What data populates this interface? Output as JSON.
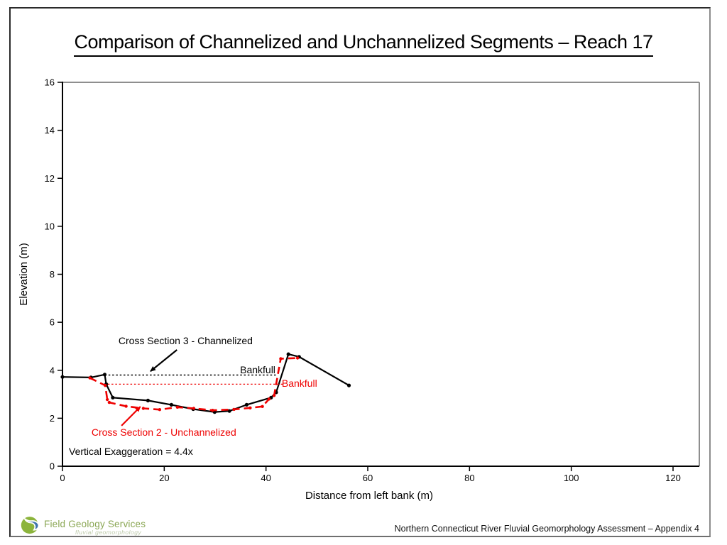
{
  "slide": {
    "title": "Comparison of Channelized and Unchannelized Segments – Reach 17",
    "footer": "Northern Connecticut River Fluvial Geomorphology Assessment – Appendix 4",
    "logo": {
      "name": "Field Geology Services",
      "tagline": "fluvial geomorphology",
      "icon": "swirl-leaf-logo",
      "colors": {
        "green": "#8cb43c",
        "blue": "#3f74ad",
        "name_text": "#8aa653",
        "tagline_text": "#bdc9a9"
      }
    }
  },
  "chart_data": {
    "type": "line",
    "title": "",
    "xlabel": "Distance from left bank (m)",
    "ylabel": "Elevation (m)",
    "xlim": [
      0,
      125
    ],
    "ylim": [
      0,
      16
    ],
    "x_ticks": [
      0,
      20,
      40,
      60,
      80,
      100,
      120
    ],
    "y_ticks": [
      0,
      2,
      4,
      6,
      8,
      10,
      12,
      14,
      16
    ],
    "grid": false,
    "legend_position": "none",
    "axis_color": "#000000",
    "plot_border_color": "#8e8e8e",
    "series": [
      {
        "id": "channelized",
        "name": "Cross Section 3 - Channelized",
        "color": "#000000",
        "style": "solid",
        "width": 2.2,
        "markers": true,
        "marker_r": 2.6,
        "points": [
          [
            0,
            3.72
          ],
          [
            5.6,
            3.7
          ],
          [
            8.3,
            3.82
          ],
          [
            8.6,
            3.42
          ],
          [
            9.9,
            2.86
          ],
          [
            16.8,
            2.74
          ],
          [
            21.4,
            2.56
          ],
          [
            25.7,
            2.38
          ],
          [
            29.9,
            2.26
          ],
          [
            32.8,
            2.3
          ],
          [
            36.2,
            2.56
          ],
          [
            41.0,
            2.86
          ],
          [
            42.0,
            3.08
          ],
          [
            44.4,
            4.67
          ],
          [
            46.5,
            4.56
          ],
          [
            56.3,
            3.37
          ]
        ]
      },
      {
        "id": "unchannelized",
        "name": "Cross Section 2 - Unchannelized",
        "color": "#ee0000",
        "style": "dashed",
        "width": 2.6,
        "markers": true,
        "marker_r": 2.2,
        "points": [
          [
            5.4,
            3.68
          ],
          [
            8.4,
            3.37
          ],
          [
            8.8,
            2.78
          ],
          [
            9.2,
            2.66
          ],
          [
            12.5,
            2.5
          ],
          [
            15.9,
            2.41
          ],
          [
            19.1,
            2.36
          ],
          [
            22.6,
            2.46
          ],
          [
            25.8,
            2.41
          ],
          [
            29.5,
            2.33
          ],
          [
            33.7,
            2.37
          ],
          [
            36.9,
            2.43
          ],
          [
            39.3,
            2.49
          ],
          [
            40.6,
            2.8
          ],
          [
            41.6,
            2.95
          ],
          [
            42.9,
            4.48
          ],
          [
            46.2,
            4.51
          ]
        ]
      },
      {
        "id": "bankfull-channelized",
        "name": "Bankfull",
        "color": "#000000",
        "style": "dotted",
        "width": 1.6,
        "markers": false,
        "points": [
          [
            8.3,
            3.8
          ],
          [
            42.0,
            3.8
          ]
        ]
      },
      {
        "id": "bankfull-unchannelized",
        "name": "Bankfull",
        "color": "#ee0000",
        "style": "dotted",
        "width": 1.3,
        "markers": false,
        "points": [
          [
            8.9,
            3.42
          ],
          [
            43.6,
            3.42
          ]
        ]
      }
    ],
    "annotations": [
      {
        "id": "label-channelized",
        "text": "Cross Section 3 - Channelized",
        "color": "#000000",
        "x": 11.0,
        "y": 5.09,
        "arrow": {
          "x1": 22.5,
          "y1": 4.85,
          "x2": 17.3,
          "y2": 3.96
        }
      },
      {
        "id": "label-bankfull-black",
        "text": "Bankfull",
        "color": "#000000",
        "x": 34.9,
        "y": 3.87
      },
      {
        "id": "label-bankfull-red",
        "text": "Bankfull",
        "color": "#ee0000",
        "x": 43.1,
        "y": 3.31
      },
      {
        "id": "label-unchannelized",
        "text": "Cross Section 2 - Unchannelized",
        "color": "#ee0000",
        "x": 5.7,
        "y": 1.27,
        "arrow": {
          "x1": 11.6,
          "y1": 1.69,
          "x2": 15.3,
          "y2": 2.48
        }
      },
      {
        "id": "label-vertical-exaggeration",
        "text": "Vertical Exaggeration = 4.4x",
        "color": "#000000",
        "x": 1.26,
        "y": 0.47
      }
    ]
  }
}
